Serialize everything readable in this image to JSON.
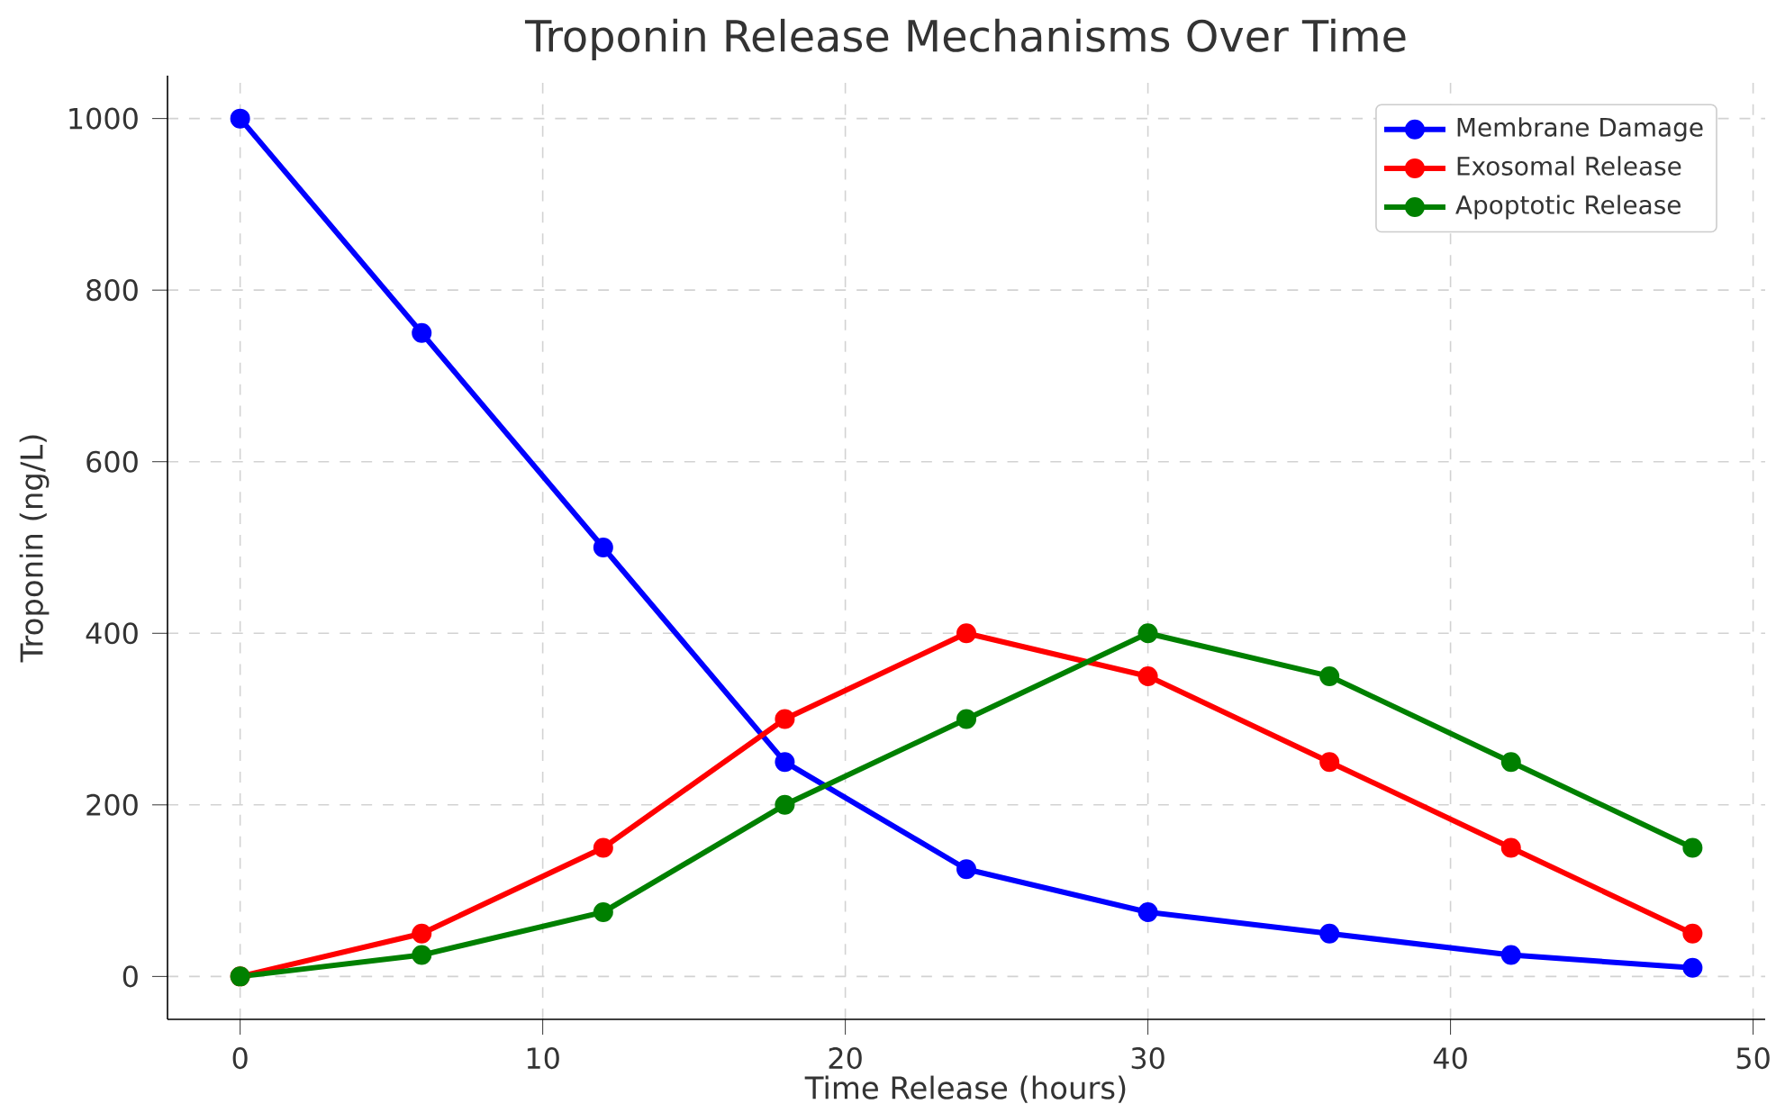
{
  "chart_data": {
    "type": "line",
    "title": "Troponin Release Mechanisms Over Time",
    "xlabel": "Time Release (hours)",
    "ylabel": "Troponin (ng/L)",
    "x": [
      0,
      6,
      12,
      18,
      24,
      30,
      36,
      42,
      48
    ],
    "series": [
      {
        "name": "Membrane Damage",
        "color": "#0000ff",
        "values": [
          1000,
          750,
          500,
          250,
          125,
          75,
          50,
          25,
          10
        ]
      },
      {
        "name": "Exosomal Release",
        "color": "#ff0000",
        "values": [
          0,
          50,
          150,
          300,
          400,
          350,
          250,
          150,
          50
        ]
      },
      {
        "name": "Apoptotic Release",
        "color": "#008000",
        "values": [
          0,
          25,
          75,
          200,
          300,
          400,
          350,
          250,
          150
        ]
      }
    ],
    "xlim": [
      -2.4,
      50.4
    ],
    "ylim": [
      -50,
      1050
    ],
    "xticks": [
      0,
      10,
      20,
      30,
      40,
      50
    ],
    "yticks": [
      0,
      200,
      400,
      600,
      800,
      1000
    ],
    "grid": true,
    "legend": "top right",
    "marker": "circle",
    "line_style": "solid"
  }
}
